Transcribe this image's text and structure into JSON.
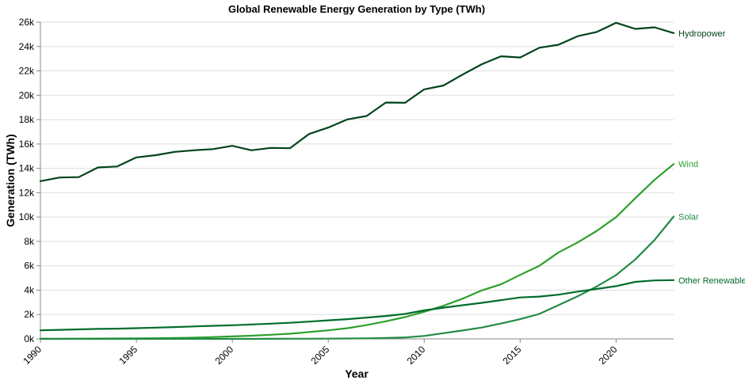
{
  "chart_data": {
    "type": "line",
    "title": "Global Renewable Energy Generation by Type (TWh)",
    "xlabel": "Year",
    "ylabel": "Generation (TWh)",
    "xlim": [
      1990,
      2023
    ],
    "ylim": [
      0,
      26000
    ],
    "grid": true,
    "x_ticks": [
      1990,
      1995,
      2000,
      2005,
      2010,
      2015,
      2020
    ],
    "y_ticks": [
      0,
      2000,
      4000,
      6000,
      8000,
      10000,
      12000,
      14000,
      16000,
      18000,
      20000,
      22000,
      24000,
      26000
    ],
    "y_tick_labels": [
      "0k",
      "2k",
      "4k",
      "6k",
      "8k",
      "10k",
      "12k",
      "14k",
      "16k",
      "18k",
      "20k",
      "22k",
      "24k",
      "26k"
    ],
    "x": [
      1990,
      1991,
      1992,
      1993,
      1994,
      1995,
      1996,
      1997,
      1998,
      1999,
      2000,
      2001,
      2002,
      2003,
      2004,
      2005,
      2006,
      2007,
      2008,
      2009,
      2010,
      2011,
      2012,
      2013,
      2014,
      2015,
      2016,
      2017,
      2018,
      2019,
      2020,
      2021,
      2022,
      2023
    ],
    "series": [
      {
        "name": "Hydropower",
        "color": "#00441b",
        "values": [
          12950,
          13250,
          13280,
          14070,
          14150,
          14900,
          15080,
          15350,
          15480,
          15580,
          15850,
          15480,
          15680,
          15650,
          16820,
          17350,
          18020,
          18300,
          19400,
          19380,
          20480,
          20800,
          21700,
          22550,
          23200,
          23100,
          23900,
          24150,
          24850,
          25200,
          25950,
          25450,
          25580,
          25100
        ]
      },
      {
        "name": "Wind",
        "color": "#2ca02c",
        "values": [
          10,
          15,
          20,
          25,
          35,
          45,
          55,
          70,
          100,
          150,
          200,
          260,
          340,
          420,
          560,
          700,
          880,
          1130,
          1440,
          1790,
          2220,
          2720,
          3300,
          3980,
          4480,
          5250,
          6000,
          7100,
          7920,
          8870,
          10000,
          11550,
          13050,
          14350
        ]
      },
      {
        "name": "Solar",
        "color": "#238b45",
        "values": [
          0,
          0,
          0,
          0,
          0,
          0,
          0,
          0,
          0,
          0,
          0,
          0,
          5,
          10,
          15,
          20,
          30,
          45,
          70,
          120,
          240,
          470,
          690,
          930,
          1260,
          1620,
          2050,
          2770,
          3500,
          4310,
          5240,
          6520,
          8110,
          10040
        ]
      },
      {
        "name": "Other Renewables",
        "color": "#006d2c",
        "values": [
          700,
          740,
          780,
          820,
          840,
          880,
          920,
          970,
          1020,
          1070,
          1120,
          1180,
          1250,
          1320,
          1420,
          1520,
          1620,
          1750,
          1880,
          2050,
          2340,
          2560,
          2760,
          2960,
          3180,
          3400,
          3470,
          3630,
          3880,
          4100,
          4330,
          4680,
          4800,
          4820
        ]
      }
    ]
  }
}
